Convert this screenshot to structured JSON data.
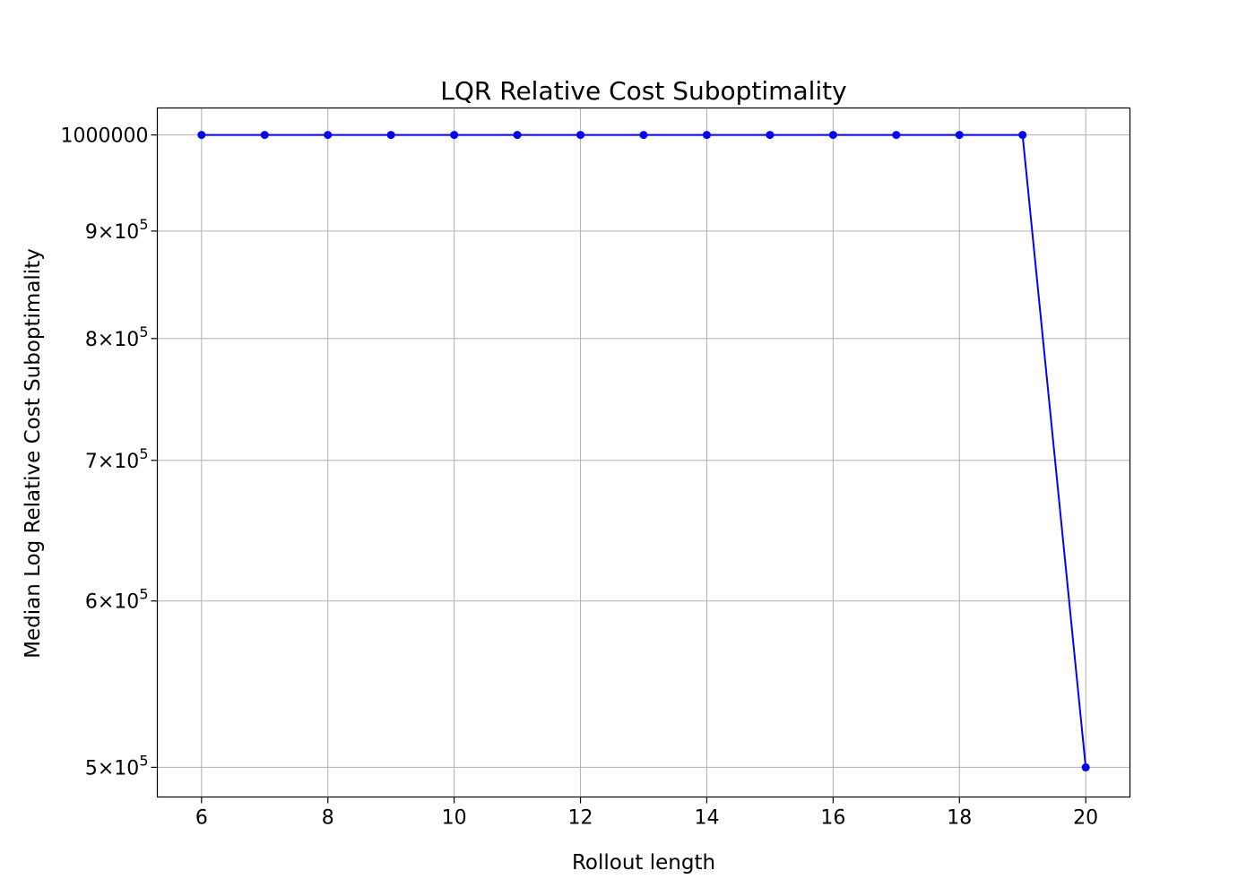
{
  "chart_data": {
    "type": "line",
    "title": "LQR Relative Cost Suboptimality",
    "xlabel": "Rollout length",
    "ylabel": "Median Log Relative Cost Suboptimality",
    "x": [
      6,
      7,
      8,
      9,
      10,
      11,
      12,
      13,
      14,
      15,
      16,
      17,
      18,
      19,
      20
    ],
    "series": [
      {
        "values": [
          1000000,
          1000000,
          1000000,
          1000000,
          1000000,
          1000000,
          1000000,
          1000000,
          1000000,
          1000000,
          1000000,
          1000000,
          1000000,
          1000000,
          500000
        ],
        "color": "#0000ff",
        "marker": "circle"
      }
    ],
    "xlim": [
      5.3,
      20.7
    ],
    "ylim": [
      484000,
      1030000
    ],
    "yscale": "log",
    "xticks": [
      6,
      8,
      10,
      12,
      14,
      16,
      18,
      20
    ],
    "yticks": [
      {
        "value": 1000000,
        "mantissa": "1000000",
        "exponent": ""
      },
      {
        "value": 900000,
        "mantissa": "9×10",
        "exponent": "5"
      },
      {
        "value": 800000,
        "mantissa": "8×10",
        "exponent": "5"
      },
      {
        "value": 700000,
        "mantissa": "7×10",
        "exponent": "5"
      },
      {
        "value": 600000,
        "mantissa": "6×10",
        "exponent": "5"
      },
      {
        "value": 500000,
        "mantissa": "5×10",
        "exponent": "5"
      }
    ],
    "grid": true,
    "grid_color": "#b0b0b0"
  }
}
